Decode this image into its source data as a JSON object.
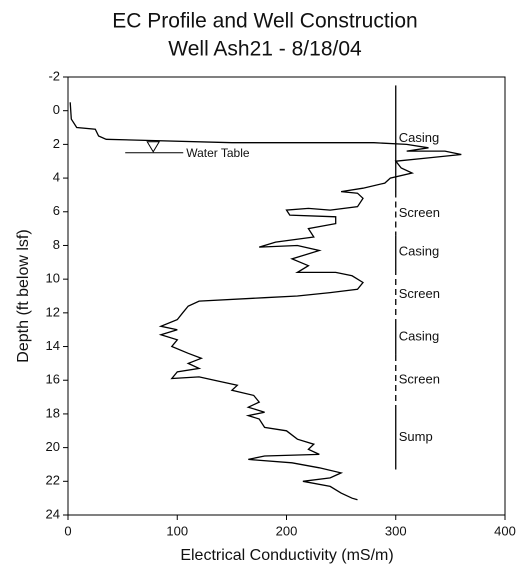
{
  "chart_data": {
    "type": "profile",
    "title": "EC Profile and Well Construction",
    "subtitle": "Well Ash21 - 8/18/04",
    "x_label": "Electrical Conductivity (mS/m)",
    "y_label": "Depth (ft below lsf)",
    "xlim": [
      0,
      400
    ],
    "xticks": [
      0,
      100,
      200,
      300,
      400
    ],
    "ylim": [
      -2,
      24
    ],
    "yticks": [
      -2,
      0,
      2,
      4,
      6,
      8,
      10,
      12,
      14,
      16,
      18,
      20,
      22,
      24
    ],
    "y_inverted": true,
    "color": "#000000",
    "x": [
      2,
      3,
      8,
      25,
      28,
      35,
      150,
      280,
      310,
      330,
      310,
      345,
      360,
      330,
      300,
      305,
      315,
      295,
      290,
      270,
      250,
      265,
      270,
      265,
      240,
      220,
      200,
      203,
      245,
      245,
      220,
      225,
      190,
      175,
      210,
      230,
      205,
      220,
      210,
      245,
      260,
      270,
      265,
      240,
      210,
      180,
      120,
      110,
      105,
      100,
      85,
      100,
      85,
      100,
      95,
      110,
      122,
      110,
      120,
      100,
      95,
      120,
      155,
      150,
      170,
      175,
      165,
      180,
      165,
      175,
      180,
      200,
      210,
      225,
      220,
      230,
      180,
      165,
      205,
      230,
      250,
      240,
      215,
      240,
      250,
      260,
      265
    ],
    "y": [
      -0.5,
      0.5,
      1.0,
      1.1,
      1.5,
      1.7,
      1.9,
      1.9,
      2.0,
      2.2,
      2.4,
      2.4,
      2.6,
      2.8,
      3.0,
      3.4,
      3.7,
      4.0,
      4.3,
      4.6,
      4.8,
      4.9,
      5.2,
      5.7,
      5.9,
      5.8,
      5.9,
      6.2,
      6.3,
      6.7,
      7.0,
      7.5,
      7.8,
      8.1,
      8.0,
      8.3,
      8.8,
      9.2,
      9.6,
      9.6,
      9.8,
      10.2,
      10.6,
      10.8,
      11.0,
      11.1,
      11.3,
      11.6,
      12.0,
      12.4,
      12.8,
      13.0,
      13.3,
      13.6,
      14.0,
      14.4,
      14.7,
      15.0,
      15.3,
      15.5,
      15.9,
      15.8,
      16.3,
      16.6,
      16.9,
      17.3,
      17.6,
      17.9,
      18.1,
      18.3,
      18.8,
      19.0,
      19.5,
      19.8,
      20.1,
      20.4,
      20.5,
      20.7,
      20.9,
      21.2,
      21.5,
      21.8,
      22.0,
      22.3,
      22.7,
      23.0,
      23.1
    ],
    "well_x": 300,
    "well_construction": [
      {
        "label": "Casing",
        "from": -1.5,
        "to": 4.8,
        "style": "solid"
      },
      {
        "label": "Screen",
        "from": 4.8,
        "to": 7.4,
        "style": "dashed"
      },
      {
        "label": "Casing",
        "from": 7.4,
        "to": 9.4,
        "style": "solid"
      },
      {
        "label": "Screen",
        "from": 9.4,
        "to": 12.4,
        "style": "dashed"
      },
      {
        "label": "Casing",
        "from": 12.4,
        "to": 14.5,
        "style": "solid"
      },
      {
        "label": "Screen",
        "from": 14.5,
        "to": 17.5,
        "style": "dashed"
      },
      {
        "label": "Sump",
        "from": 17.5,
        "to": 21.3,
        "style": "solid"
      }
    ],
    "water_table": {
      "text": "Water Table",
      "depth": 2.5,
      "x": 78
    }
  }
}
